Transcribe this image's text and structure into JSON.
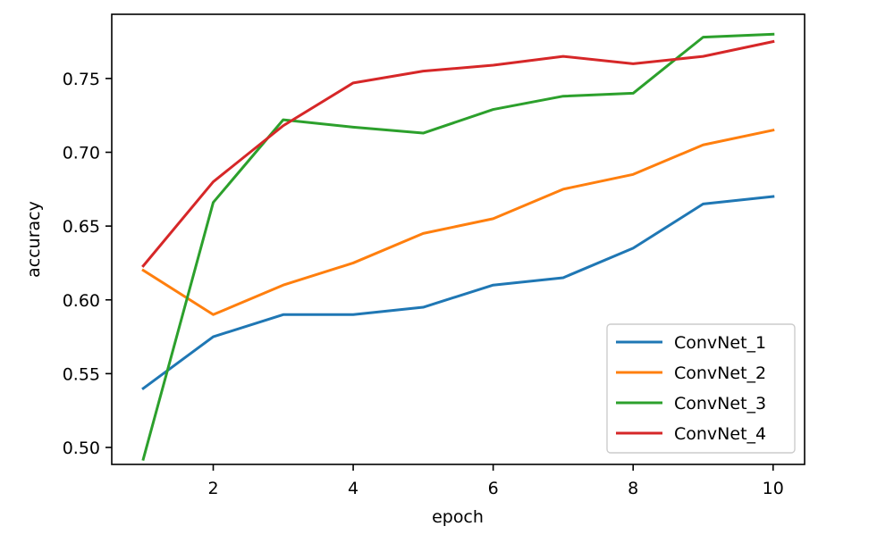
{
  "chart_data": {
    "type": "line",
    "title": "",
    "xlabel": "epoch",
    "ylabel": "accuracy",
    "xlim": [
      0.55,
      10.45
    ],
    "ylim": [
      0.4885,
      0.7935
    ],
    "xticks": [
      2,
      4,
      6,
      8,
      10
    ],
    "yticks": [
      0.5,
      0.55,
      0.6,
      0.65,
      0.7,
      0.75
    ],
    "xtick_labels": [
      "2",
      "4",
      "6",
      "8",
      "10"
    ],
    "ytick_labels": [
      "0.50",
      "0.55",
      "0.60",
      "0.65",
      "0.70",
      "0.75"
    ],
    "grid": false,
    "legend_position": "lower right",
    "x": [
      1,
      2,
      3,
      4,
      5,
      6,
      7,
      8,
      9,
      10
    ],
    "series": [
      {
        "name": "ConvNet_1",
        "color": "#1f77b4",
        "values": [
          0.54,
          0.575,
          0.59,
          0.59,
          0.595,
          0.61,
          0.615,
          0.635,
          0.665,
          0.67
        ]
      },
      {
        "name": "ConvNet_2",
        "color": "#ff7f0e",
        "values": [
          0.62,
          0.59,
          0.61,
          0.625,
          0.645,
          0.655,
          0.675,
          0.685,
          0.705,
          0.715
        ]
      },
      {
        "name": "ConvNet_3",
        "color": "#2ca02c",
        "values": [
          0.492,
          0.666,
          0.722,
          0.717,
          0.713,
          0.729,
          0.738,
          0.74,
          0.778,
          0.78
        ]
      },
      {
        "name": "ConvNet_4",
        "color": "#d62728",
        "values": [
          0.623,
          0.68,
          0.718,
          0.747,
          0.755,
          0.759,
          0.765,
          0.76,
          0.765,
          0.775
        ]
      }
    ]
  }
}
